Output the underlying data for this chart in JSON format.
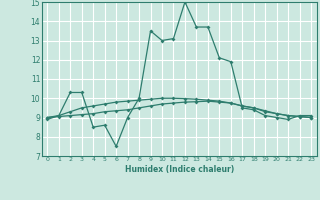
{
  "xlabel": "Humidex (Indice chaleur)",
  "xlim": [
    -0.5,
    23.5
  ],
  "ylim": [
    7,
    15
  ],
  "yticks": [
    7,
    8,
    9,
    10,
    11,
    12,
    13,
    14,
    15
  ],
  "xticks": [
    0,
    1,
    2,
    3,
    4,
    5,
    6,
    7,
    8,
    9,
    10,
    11,
    12,
    13,
    14,
    15,
    16,
    17,
    18,
    19,
    20,
    21,
    22,
    23
  ],
  "bg_color": "#cce8e0",
  "grid_color": "#ffffff",
  "line_color": "#2e7d6e",
  "line1_x": [
    0,
    1,
    2,
    3,
    4,
    5,
    6,
    7,
    8,
    9,
    10,
    11,
    12,
    13,
    14,
    15,
    16,
    17,
    18,
    19,
    20,
    21,
    22,
    23
  ],
  "line1_y": [
    8.9,
    9.1,
    10.3,
    10.3,
    8.5,
    8.6,
    7.5,
    9.0,
    10.0,
    13.5,
    13.0,
    13.1,
    15.0,
    13.7,
    13.7,
    12.1,
    11.9,
    9.5,
    9.4,
    9.1,
    9.0,
    8.9,
    9.1,
    9.1
  ],
  "line2_x": [
    0,
    1,
    2,
    3,
    4,
    5,
    6,
    7,
    8,
    9,
    10,
    11,
    12,
    13,
    14,
    15,
    16,
    17,
    18,
    19,
    20,
    21,
    22,
    23
  ],
  "line2_y": [
    9.0,
    9.05,
    9.1,
    9.15,
    9.2,
    9.3,
    9.35,
    9.4,
    9.5,
    9.6,
    9.7,
    9.75,
    9.8,
    9.82,
    9.85,
    9.8,
    9.75,
    9.6,
    9.5,
    9.35,
    9.2,
    9.1,
    9.05,
    9.0
  ],
  "line3_x": [
    0,
    1,
    2,
    3,
    4,
    5,
    6,
    7,
    8,
    9,
    10,
    11,
    12,
    13,
    14,
    15,
    16,
    17,
    18,
    19,
    20,
    21,
    22,
    23
  ],
  "line3_y": [
    9.0,
    9.1,
    9.3,
    9.5,
    9.6,
    9.7,
    9.8,
    9.85,
    9.9,
    9.95,
    10.0,
    10.0,
    9.98,
    9.95,
    9.9,
    9.85,
    9.75,
    9.6,
    9.5,
    9.3,
    9.2,
    9.1,
    9.05,
    9.0
  ]
}
